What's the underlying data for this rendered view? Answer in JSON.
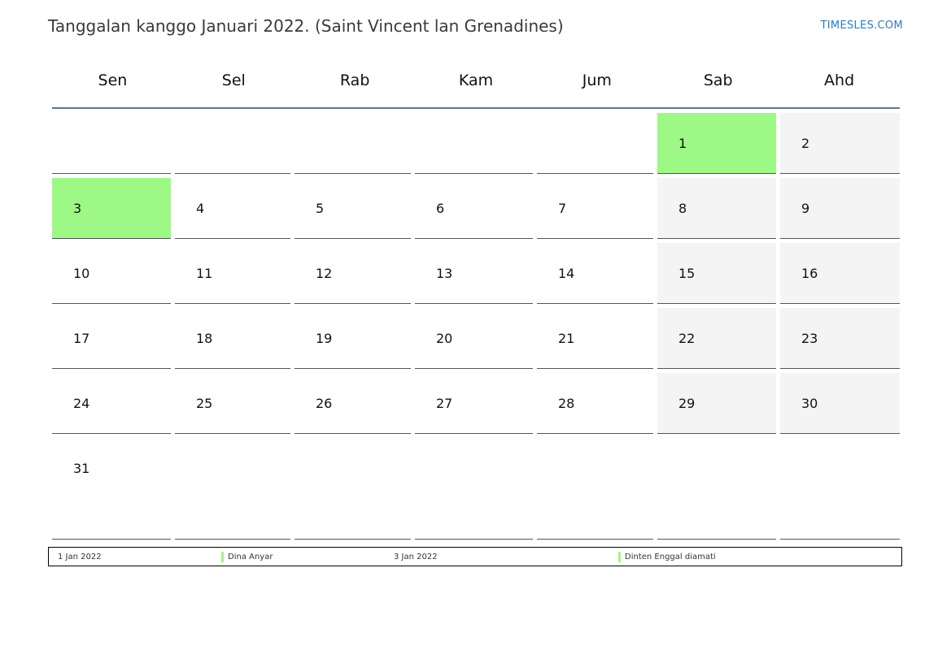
{
  "header": {
    "title": "Tanggalan kanggo Januari 2022. (Saint Vincent lan Grenadines)",
    "brand": "TIMESLES.COM"
  },
  "weekdays": [
    "Sen",
    "Sel",
    "Rab",
    "Kam",
    "Jum",
    "Sab",
    "Ahd"
  ],
  "weeks": [
    [
      "",
      "",
      "",
      "",
      "",
      "1",
      "2"
    ],
    [
      "3",
      "4",
      "5",
      "6",
      "7",
      "8",
      "9"
    ],
    [
      "10",
      "11",
      "12",
      "13",
      "14",
      "15",
      "16"
    ],
    [
      "17",
      "18",
      "19",
      "20",
      "21",
      "22",
      "23"
    ],
    [
      "24",
      "25",
      "26",
      "27",
      "28",
      "29",
      "30"
    ],
    [
      "31",
      "",
      "",
      "",
      "",
      "",
      ""
    ]
  ],
  "holidays": [
    "1",
    "3"
  ],
  "legend": [
    {
      "date": "1 Jan 2022",
      "name": "Dina Anyar"
    },
    {
      "date": "3 Jan 2022",
      "name": "Dinten Enggal diamati"
    }
  ],
  "colors": {
    "holiday": "#9ef886",
    "weekend": "#f4f4f4",
    "header_rule": "#5b7595",
    "brand": "#2e7bbf"
  }
}
